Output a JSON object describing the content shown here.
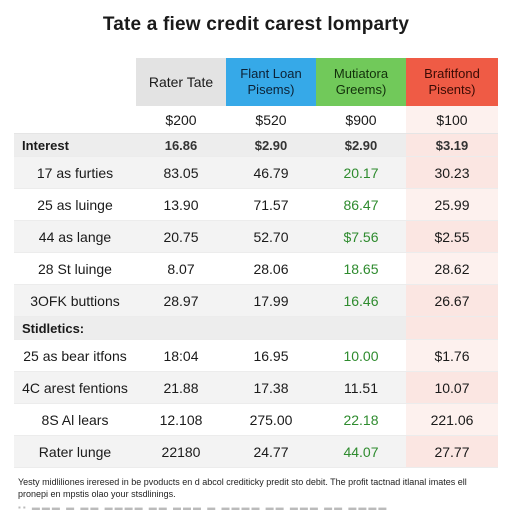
{
  "title": "Tate a fiew credit carest lomparty",
  "columns": [
    {
      "label": "",
      "color": "#ffffff"
    },
    {
      "label": "Rater Tate",
      "color": "#e3e3e3"
    },
    {
      "label": "Flant Loan\nPisems)",
      "color": "#36a9e8"
    },
    {
      "label": "Mutiatora\nGreems)",
      "color": "#71c95a"
    },
    {
      "label": "Brafitfond\nPisents)",
      "color": "#ef5b45"
    }
  ],
  "amounts": [
    "$200",
    "$520",
    "$900",
    "$100"
  ],
  "section1": {
    "label": "Interest",
    "values": [
      "16.86",
      "$2.90",
      "$2.90",
      "$3.19"
    ]
  },
  "rows1": [
    {
      "label": "17 as furties",
      "values": [
        "83.05",
        "46.79",
        "20.17",
        "30.23"
      ]
    },
    {
      "label": "25 as luinge",
      "values": [
        "13.90",
        "71.57",
        "86.47",
        "25.99"
      ]
    },
    {
      "label": "44 as lange",
      "values": [
        "20.75",
        "52.70",
        "$7.56",
        "$2.55"
      ]
    },
    {
      "label": "28 St luinge",
      "values": [
        "8.07",
        "28.06",
        "18.65",
        "28.62"
      ]
    },
    {
      "label": "3OFK buttions",
      "values": [
        "28.97",
        "17.99",
        "16.46",
        "26.67"
      ]
    }
  ],
  "section2": {
    "label": "Stidletics:"
  },
  "rows2": [
    {
      "label": "25 as bear itfons",
      "values": [
        "18:04",
        "16.95",
        "10.00",
        "$1.76"
      ]
    },
    {
      "label": "4C arest fentions",
      "values": [
        "21.88",
        "17.38",
        "11.51",
        "10.07"
      ]
    },
    {
      "label": "8S Al lears",
      "values": [
        "12.108",
        "275.00",
        "22.18",
        "221.06"
      ]
    },
    {
      "label": "Rater lunge",
      "values": [
        "22180",
        "24.77",
        "44.07",
        "27.77"
      ]
    }
  ],
  "footnote": "Yesty midliliones ireresed in be pvoducts en d abcol crediticky predit sto debit. The profit tactnad itlanal imates ell pronepi en mpstis olao your stsdlinings."
}
